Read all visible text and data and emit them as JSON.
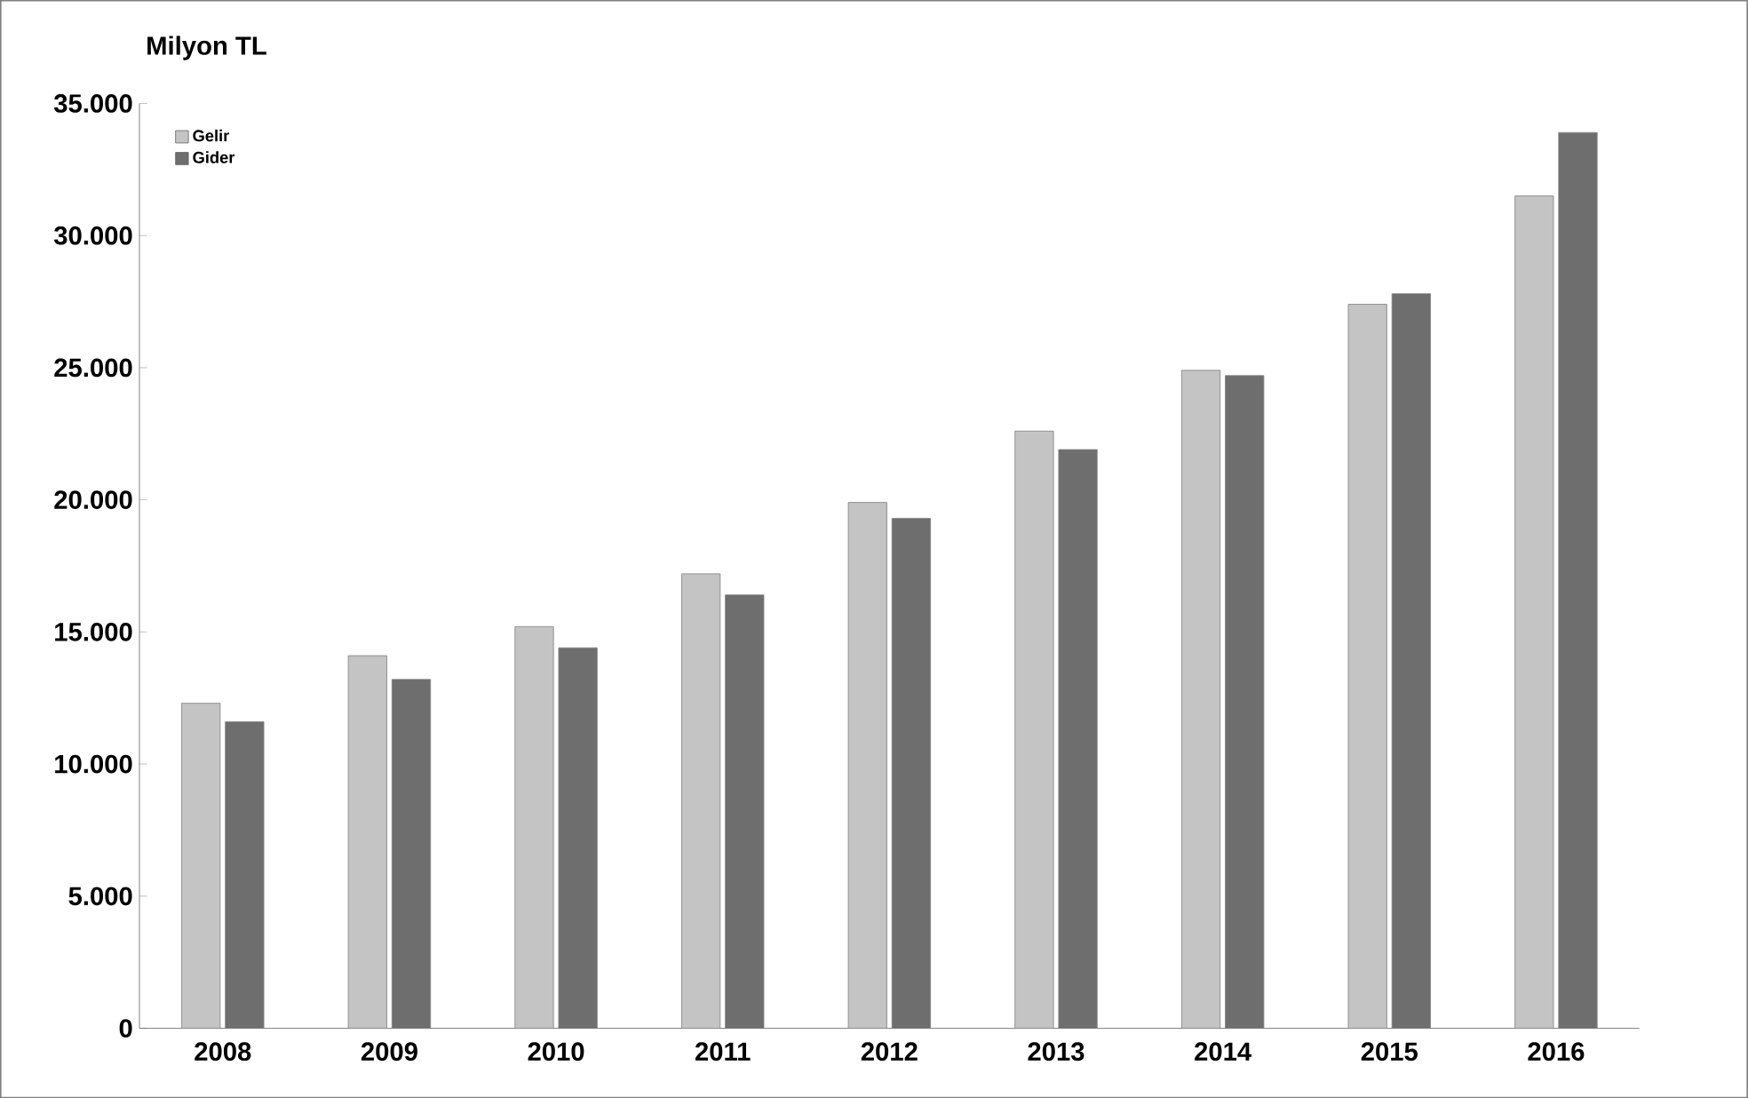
{
  "chart_data": {
    "type": "bar",
    "ylabel": "Milyon TL",
    "categories": [
      "2008",
      "2009",
      "2010",
      "2011",
      "2012",
      "2013",
      "2014",
      "2015",
      "2016"
    ],
    "series": [
      {
        "name": "Gelir",
        "color": "#c4c4c4",
        "values": [
          12300,
          14100,
          15200,
          17200,
          19900,
          22600,
          24900,
          27400,
          31500
        ]
      },
      {
        "name": "Gider",
        "color": "#6e6e6e",
        "values": [
          11600,
          13200,
          14400,
          16400,
          19300,
          21900,
          24700,
          27800,
          33900
        ]
      }
    ],
    "ylim": [
      0,
      35000
    ],
    "yticks": [
      {
        "value": 0,
        "label": "0"
      },
      {
        "value": 5000,
        "label": "5.000"
      },
      {
        "value": 10000,
        "label": "10.000"
      },
      {
        "value": 15000,
        "label": "15.000"
      },
      {
        "value": 20000,
        "label": "20.000"
      },
      {
        "value": 25000,
        "label": "25.000"
      },
      {
        "value": 30000,
        "label": "30.000"
      },
      {
        "value": 35000,
        "label": "35.000"
      }
    ],
    "grid": false,
    "legend": "top left"
  }
}
